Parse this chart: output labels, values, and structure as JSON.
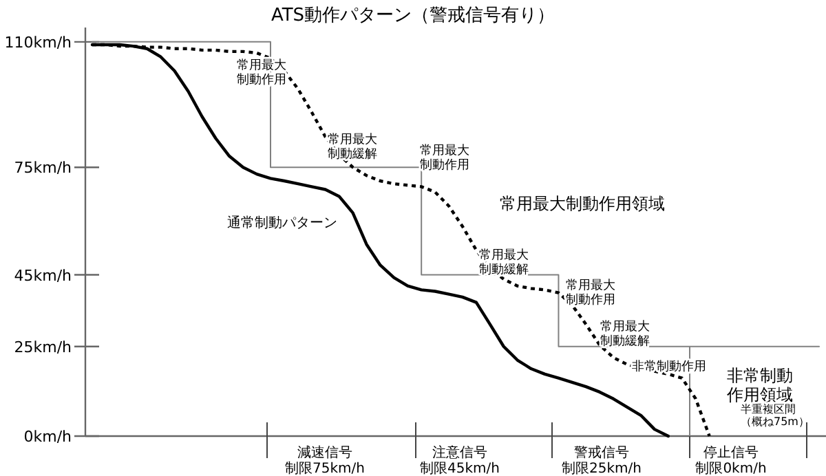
{
  "chart_data": {
    "type": "line",
    "title": "ATS動作パターン（警戒信号有り）",
    "categories": [
      null,
      null,
      null,
      null,
      null,
      null,
      null,
      null,
      null,
      null,
      null,
      null,
      null,
      null,
      null,
      null,
      null,
      null,
      null,
      null,
      null,
      null,
      null,
      null,
      null,
      null,
      null,
      null,
      null,
      null,
      null,
      null,
      null,
      null,
      null,
      null,
      null,
      null,
      null,
      null,
      null,
      null,
      null,
      null,
      null,
      null,
      null,
      null,
      null,
      null,
      null,
      null,
      null,
      null
    ],
    "ylim": [
      0,
      114
    ],
    "yticks": [
      {
        "value": 0,
        "label": "0km/h"
      },
      {
        "value": 25,
        "label": "25km/h"
      },
      {
        "value": 45,
        "label": "45km/h"
      },
      {
        "value": 75,
        "label": "75km/h"
      },
      {
        "value": 110,
        "label": "110km/h"
      }
    ],
    "tick_labels": "y",
    "series": [
      {
        "type": "step",
        "color": "#808080",
        "values": [
          110,
          110,
          110,
          110,
          110,
          110,
          110,
          110,
          110,
          110,
          110,
          110,
          110,
          75,
          75,
          75,
          75,
          75,
          75,
          75,
          75,
          75,
          75,
          75,
          45,
          45,
          45,
          45,
          45,
          45,
          45,
          45,
          45,
          45,
          25,
          25,
          25,
          25,
          25,
          25,
          25,
          25,
          25,
          25,
          25,
          25,
          25,
          25,
          25,
          25,
          25,
          25,
          25,
          25
        ]
      },
      {
        "color": "#000000",
        "line_style": "solid",
        "values": [
          109.2,
          109.2,
          109.2,
          108.8,
          108.1,
          105.8,
          101.9,
          96.2,
          89.2,
          83.1,
          78.1,
          75.0,
          73.1,
          71.9,
          71.2,
          70.4,
          69.6,
          68.8,
          66.9,
          62.3,
          53.5,
          47.7,
          44.2,
          41.9,
          40.8,
          40.4,
          39.6,
          38.8,
          37.3,
          31.2,
          25.0,
          21.2,
          18.8,
          17.3,
          16.2,
          15.0,
          13.8,
          12.3,
          10.4,
          8.1,
          5.8,
          1.9,
          0,
          null,
          null,
          null,
          null,
          null,
          null,
          null,
          null,
          null,
          null,
          null
        ]
      },
      {
        "color": "#000000",
        "line_style": "dotted",
        "values": [
          109.2,
          109.2,
          108.8,
          108.8,
          108.5,
          108.5,
          108.1,
          108.1,
          107.7,
          107.7,
          107.3,
          107.3,
          106.9,
          105.4,
          101.9,
          96.9,
          90.4,
          83.5,
          78.5,
          75.0,
          72.7,
          71.2,
          70.4,
          70.0,
          69.6,
          68.1,
          64.2,
          58.5,
          51.9,
          46.9,
          43.8,
          41.9,
          41.2,
          40.8,
          40.0,
          36.5,
          31.2,
          25.4,
          21.9,
          20.0,
          18.8,
          18.1,
          17.3,
          16.2,
          10.4,
          0,
          null,
          null,
          null,
          null,
          null,
          null,
          null,
          null
        ]
      }
    ],
    "annotations": [
      "常用最大制動作用",
      "常用最大制動緩解",
      "常用最大制動作用",
      "常用最大制動緩解",
      "常用最大制動作用",
      "常用最大制動緩解",
      "非常制動作用",
      "通常制動パターン",
      "常用最大制動作用領域",
      "非常制動作用領域",
      "半重複区間（概ね75m）",
      "減速信号制限75km/h",
      "注意信号制限45km/h",
      "警戒信号制限25km/h",
      "停止信号制限0km/h"
    ]
  }
}
